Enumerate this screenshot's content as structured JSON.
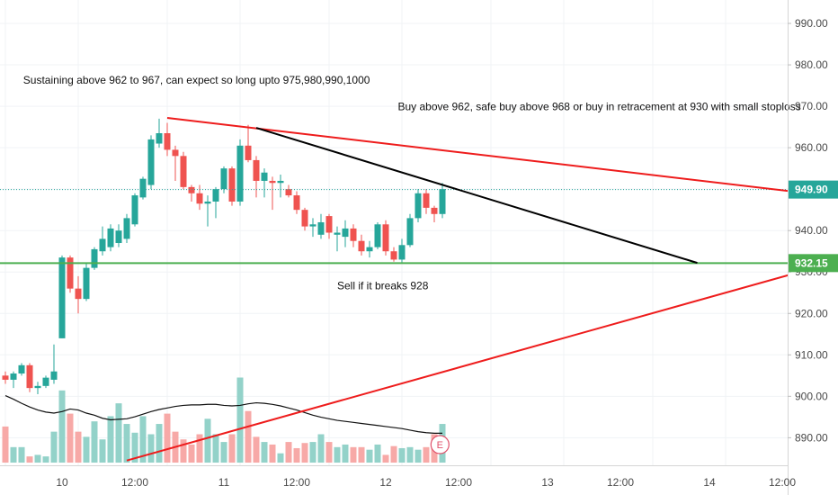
{
  "chart_data": {
    "type": "candlestick",
    "y_axis": {
      "side": "right",
      "ylim": [
        884,
        995
      ],
      "ticks": [
        890,
        900,
        910,
        920,
        930,
        940,
        950,
        960,
        970,
        980,
        990
      ],
      "tick_labels": [
        "890.00",
        "900.00",
        "910.00",
        "920.00",
        "930.00",
        "940.00",
        "950.00",
        "960.00",
        "970.00",
        "980.00",
        "990.00"
      ]
    },
    "x_axis": {
      "ticks": [
        0,
        9,
        20,
        29,
        40,
        49,
        60,
        69,
        80,
        89,
        100
      ],
      "tick_labels": [
        "10",
        "12:00",
        "11",
        "12:00",
        "12",
        "12:00",
        "13",
        "12:00",
        "14",
        "12:00"
      ],
      "label_positions": [
        7,
        16,
        27,
        36,
        47,
        56,
        67,
        76,
        87,
        96
      ]
    },
    "candles": [
      [
        0,
        905.0,
        906.0,
        903.0,
        904.0
      ],
      [
        1,
        904.0,
        906.0,
        902.0,
        905.5
      ],
      [
        2,
        905.5,
        908.0,
        905.0,
        907.5
      ],
      [
        3,
        907.5,
        908.0,
        901.0,
        902.0
      ],
      [
        4,
        902.0,
        903.5,
        900.5,
        902.5
      ],
      [
        5,
        902.5,
        905.0,
        902.0,
        904.5
      ],
      [
        6,
        904.0,
        912.5,
        903.0,
        906.0
      ],
      [
        7,
        914.0,
        934.0,
        914.0,
        933.5
      ],
      [
        8,
        933.5,
        934.0,
        925.0,
        926.0
      ],
      [
        9,
        926.0,
        929.0,
        920.0,
        923.5
      ],
      [
        10,
        923.5,
        932.0,
        923.0,
        931.0
      ],
      [
        11,
        931.0,
        936.0,
        930.5,
        935.5
      ],
      [
        12,
        935.0,
        941.0,
        934.0,
        938.0
      ],
      [
        13,
        936.0,
        941.5,
        935.0,
        940.5
      ],
      [
        14,
        937.0,
        941.5,
        936.0,
        940.0
      ],
      [
        15,
        938.0,
        944.0,
        937.0,
        943.0
      ],
      [
        16,
        941.5,
        949.0,
        941.0,
        948.5
      ],
      [
        17,
        948.0,
        953.0,
        947.5,
        952.5
      ],
      [
        18,
        951.0,
        963.0,
        950.0,
        962.0
      ],
      [
        19,
        961.0,
        967.0,
        960.0,
        963.5
      ],
      [
        20,
        963.5,
        966.0,
        958.0,
        959.5
      ],
      [
        21,
        959.5,
        960.5,
        952.0,
        958.0
      ],
      [
        22,
        958.0,
        959.0,
        950.0,
        950.5
      ],
      [
        23,
        950.5,
        951.0,
        947.0,
        949.0
      ],
      [
        24,
        949.0,
        951.0,
        945.0,
        946.5
      ],
      [
        25,
        946.5,
        948.5,
        941.0,
        947.0
      ],
      [
        26,
        947.0,
        950.5,
        943.0,
        950.0
      ],
      [
        27,
        950.0,
        955.5,
        949.0,
        955.0
      ],
      [
        28,
        955.0,
        955.5,
        946.0,
        947.0
      ],
      [
        29,
        947.0,
        962.0,
        946.0,
        960.5
      ],
      [
        30,
        960.5,
        965.5,
        956.5,
        957.0
      ],
      [
        31,
        957.0,
        958.0,
        948.0,
        952.0
      ],
      [
        32,
        952.0,
        955.0,
        948.0,
        954.0
      ],
      [
        33,
        952.0,
        953.0,
        945.0,
        951.5
      ],
      [
        34,
        951.5,
        953.5,
        948.0,
        952.0
      ],
      [
        35,
        950.0,
        951.0,
        948.0,
        948.5
      ],
      [
        36,
        948.5,
        949.5,
        944.0,
        945.0
      ],
      [
        37,
        945.0,
        945.5,
        940.0,
        941.0
      ],
      [
        38,
        941.0,
        943.0,
        938.5,
        941.5
      ],
      [
        39,
        939.0,
        944.0,
        938.0,
        942.0
      ],
      [
        40,
        943.5,
        944.0,
        938.0,
        939.5
      ],
      [
        41,
        939.0,
        941.0,
        935.0,
        939.5
      ],
      [
        42,
        938.5,
        942.5,
        936.0,
        940.5
      ],
      [
        43,
        940.5,
        941.5,
        936.0,
        937.5
      ],
      [
        44,
        937.5,
        939.0,
        934.0,
        935.0
      ],
      [
        45,
        935.0,
        937.5,
        933.5,
        936.0
      ],
      [
        46,
        936.0,
        942.0,
        935.5,
        941.5
      ],
      [
        47,
        941.5,
        942.5,
        934.0,
        935.0
      ],
      [
        48,
        935.0,
        936.0,
        932.5,
        933.0
      ],
      [
        49,
        933.0,
        938.0,
        932.0,
        936.5
      ],
      [
        50,
        936.5,
        944.0,
        936.0,
        943.0
      ],
      [
        51,
        943.0,
        950.0,
        942.0,
        949.0
      ],
      [
        52,
        949.0,
        950.0,
        944.0,
        945.5
      ],
      [
        53,
        945.5,
        946.0,
        942.0,
        944.0
      ],
      [
        54,
        944.0,
        951.5,
        943.0,
        950.0
      ]
    ],
    "volume": [
      7,
      3,
      3,
      1.2,
      1.5,
      1.2,
      6,
      14,
      9.5,
      6,
      5,
      8,
      4.5,
      9,
      11.5,
      7.5,
      5.8,
      9,
      5.5,
      7.5,
      9.5,
      6,
      4.5,
      3.5,
      5.5,
      8.5,
      5.5,
      4,
      5.5,
      16.5,
      10,
      5,
      4,
      3.5,
      1.8,
      4,
      2.8,
      3.8,
      4,
      5.5,
      4,
      3,
      3.5,
      3,
      3,
      2.5,
      3.5,
      1.5,
      3.2,
      2.8,
      3,
      2.5,
      3,
      5.5,
      7.5
    ],
    "volume_max": 22,
    "volume_ma": [
      13,
      12.3,
      11.5,
      10.8,
      10.2,
      9.8,
      9.6,
      9.9,
      10.4,
      10.2,
      9.6,
      9.2,
      8.6,
      8.3,
      8.4,
      8.5,
      8.9,
      9.4,
      9.9,
      10.3,
      10.6,
      10.9,
      11.1,
      11.2,
      11.2,
      11.3,
      11.3,
      11.1,
      11.0,
      11.1,
      11.4,
      11.6,
      11.5,
      11.3,
      11.0,
      10.6,
      10.2,
      9.7,
      9.2,
      8.8,
      8.5,
      8.2,
      8.0,
      7.8,
      7.6,
      7.4,
      7.2,
      7.0,
      6.8,
      6.6,
      6.3,
      6.0,
      5.8,
      5.7,
      5.7
    ],
    "current_price": {
      "value": 949.9,
      "label": "949.90",
      "color": "#26a69a"
    },
    "support_level": {
      "value": 932.15,
      "label": "932.15",
      "color": "#4caf50"
    },
    "trendlines": [
      {
        "color": "#ee1c1c",
        "from": [
          20,
          967.2
        ],
        "to": [
          110,
          946.5
        ]
      },
      {
        "color": "#ee1c1c",
        "from": [
          15,
          884.5
        ],
        "to": [
          110,
          936.5
        ]
      },
      {
        "color": "#000000",
        "from": [
          31,
          964.8
        ],
        "to": [
          85.5,
          932.2
        ]
      }
    ],
    "annotations": [
      {
        "text": "Sustaining above 962 to 967, can expect so long upto  975,980,990,1000",
        "x": 2.2,
        "y": 975.5
      },
      {
        "text": "Buy above 962, safe buy above 968 or buy in retracement at 930 with small stoploss",
        "x": 48.5,
        "y": 969.0
      },
      {
        "text": "Sell if it breaks 928",
        "x": 41,
        "y": 925.8
      }
    ],
    "earnings_marker": {
      "label": "E",
      "x": 53.7
    },
    "colors": {
      "up": "#26a69a",
      "down": "#ef5350",
      "up_vol": "#93d2c9",
      "down_vol": "#f7a9a7",
      "grid": "#f0f3f6",
      "axis_text": "#4a4a4a"
    }
  }
}
